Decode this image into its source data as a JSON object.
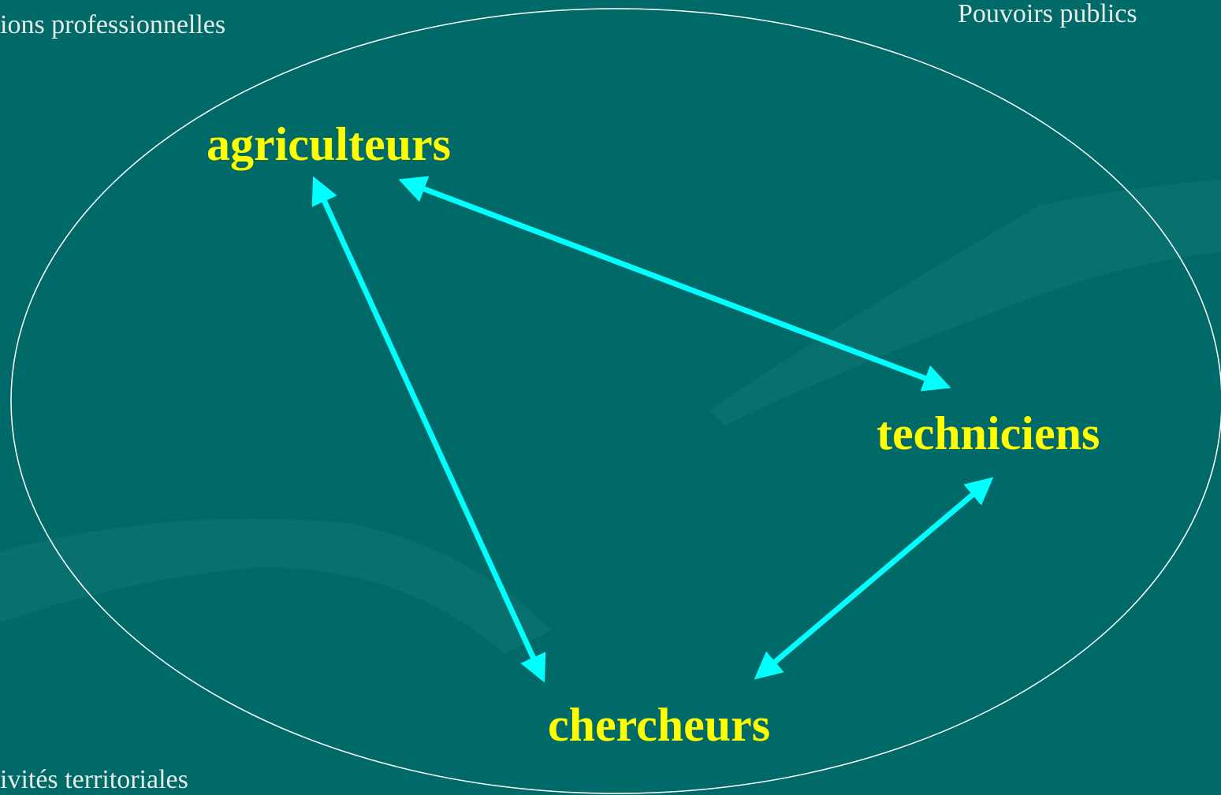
{
  "corner_labels": {
    "top_left": "ions professionnelles",
    "top_right": "Pouvoirs publics",
    "bottom_left": "ivités territoriales"
  },
  "nodes": [
    {
      "label": "agriculteurs"
    },
    {
      "label": "techniciens"
    },
    {
      "label": "chercheurs"
    }
  ]
}
